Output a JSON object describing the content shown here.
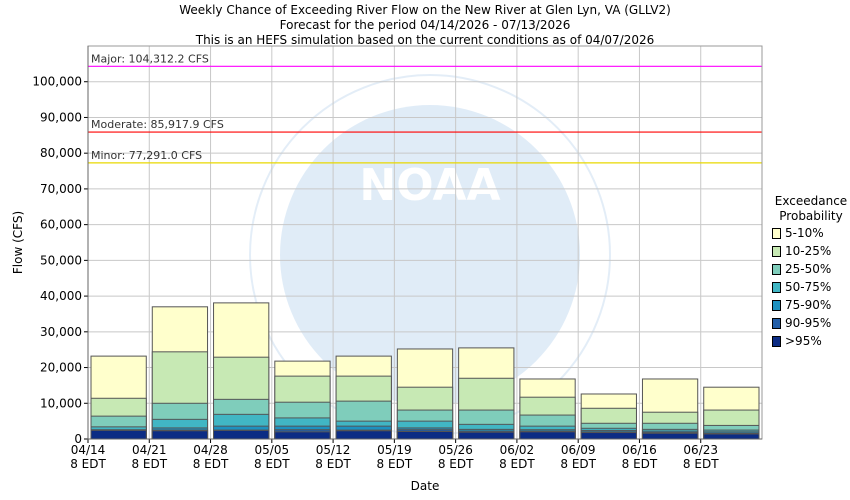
{
  "chart_data": {
    "type": "bar",
    "stacked": true,
    "title": "Weekly Chance of Exceeding River Flow on the New River at Glen Lyn, VA (GLLV2)",
    "subtitle1": "Forecast for the period 04/14/2026 - 07/13/2026",
    "subtitle2": "This is an HEFS simulation based on the current conditions as of 04/07/2026",
    "xlabel": "Date",
    "ylabel": "Flow (CFS)",
    "ylim": [
      0,
      110000
    ],
    "grid": true,
    "yticks": [
      0,
      10000,
      20000,
      30000,
      40000,
      50000,
      60000,
      70000,
      80000,
      90000,
      100000
    ],
    "ytick_labels": [
      "0",
      "10,000",
      "20,000",
      "30,000",
      "40,000",
      "50,000",
      "60,000",
      "70,000",
      "80,000",
      "90,000",
      "100,000"
    ],
    "xtick_labels": [
      [
        "04/14",
        "8 EDT"
      ],
      [
        "04/21",
        "8 EDT"
      ],
      [
        "04/28",
        "8 EDT"
      ],
      [
        "05/05",
        "8 EDT"
      ],
      [
        "05/12",
        "8 EDT"
      ],
      [
        "05/19",
        "8 EDT"
      ],
      [
        "05/26",
        "8 EDT"
      ],
      [
        "06/02",
        "8 EDT"
      ],
      [
        "06/09",
        "8 EDT"
      ],
      [
        "06/16",
        "8 EDT"
      ],
      [
        "06/23",
        "8 EDT"
      ]
    ],
    "categories": [
      "04/14",
      "04/21",
      "04/28",
      "05/05",
      "05/12",
      "05/19",
      "05/26",
      "06/02",
      "06/09",
      "06/16",
      "06/23"
    ],
    "legend_title": "Exceedance Probability",
    "legend_position": "right",
    "series": [
      {
        "name": ">95%",
        "color": "#0c2c84",
        "values": [
          2400,
          2300,
          2400,
          2000,
          2300,
          2100,
          1900,
          2000,
          1800,
          1600,
          1400
        ]
      },
      {
        "name": "90-95%",
        "color": "#225ea8",
        "values": [
          2500,
          2500,
          2500,
          2600,
          2500,
          2600,
          2200,
          2200,
          2000,
          1800,
          1600
        ]
      },
      {
        "name": "75-90%",
        "color": "#1d91c0",
        "values": [
          2600,
          3100,
          3600,
          3600,
          3600,
          3100,
          2700,
          2600,
          2400,
          2200,
          2000
        ]
      },
      {
        "name": "50-75%",
        "color": "#41b6c4",
        "values": [
          3400,
          5500,
          6900,
          5900,
          5000,
          5000,
          4100,
          3600,
          3000,
          2700,
          2500
        ]
      },
      {
        "name": "25-50%",
        "color": "#7fcdbb",
        "values": [
          6400,
          10000,
          11100,
          10300,
          10600,
          8100,
          8100,
          6700,
          4400,
          4400,
          3800
        ]
      },
      {
        "name": "10-25%",
        "color": "#c7e9b4",
        "values": [
          11400,
          24400,
          22900,
          17600,
          17600,
          14500,
          17000,
          11700,
          8600,
          7500,
          8100
        ]
      },
      {
        "name": "5-10%",
        "color": "#ffffcc",
        "values": [
          23200,
          37000,
          38100,
          21800,
          23200,
          25200,
          25500,
          16800,
          12600,
          16800,
          14500
        ]
      }
    ],
    "thresholds": [
      {
        "label": "Major: 104,312.2 CFS",
        "value": 104312.2,
        "color": "#ff00ff"
      },
      {
        "label": "Moderate: 85,917.9 CFS",
        "value": 85917.9,
        "color": "#ff0000"
      },
      {
        "label": "Minor: 77,291.0 CFS",
        "value": 77291.0,
        "color": "#e8d800"
      }
    ],
    "legend_order": [
      "5-10%",
      "10-25%",
      "25-50%",
      "50-75%",
      "75-90%",
      "90-95%",
      ">95%"
    ]
  },
  "watermark": "NOAA"
}
